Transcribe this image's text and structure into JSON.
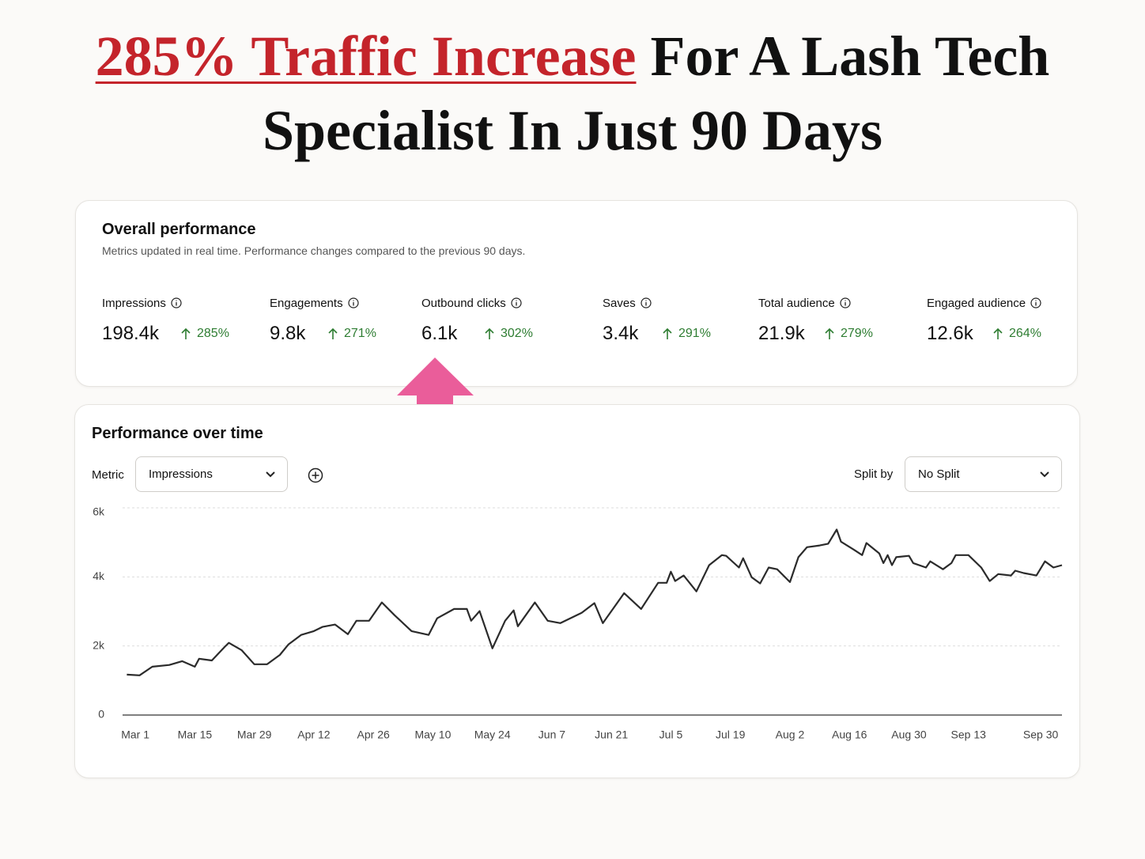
{
  "header": {
    "title_highlight": "285% Traffic Increase",
    "title_rest_line1": "For A Lash Tech",
    "title_line2": "Specialist In Just 90 Days"
  },
  "overall": {
    "title": "Overall performance",
    "subtitle": "Metrics updated in real time. Performance changes compared to the previous 90 days.",
    "metrics": [
      {
        "name": "Impressions",
        "value": "198.4k",
        "change": "285%"
      },
      {
        "name": "Engagements",
        "value": "9.8k",
        "change": "271%"
      },
      {
        "name": "Outbound clicks",
        "value": "6.1k",
        "change": "302%"
      },
      {
        "name": "Saves",
        "value": "3.4k",
        "change": "291%"
      },
      {
        "name": "Total audience",
        "value": "21.9k",
        "change": "279%"
      },
      {
        "name": "Engaged audience",
        "value": "12.6k",
        "change": "264%"
      }
    ]
  },
  "performance": {
    "title": "Performance over time",
    "metric_label": "Metric",
    "metric_selected": "Impressions",
    "split_label": "Split by",
    "split_selected": "No Split"
  },
  "chart_data": {
    "type": "line",
    "color": "#2b2b2b",
    "grid": true,
    "x": [
      -2,
      1,
      4,
      8,
      11,
      14,
      15,
      18,
      21,
      22,
      25,
      28,
      31,
      34,
      36,
      39,
      42,
      44,
      47,
      50,
      52,
      55,
      58,
      61,
      65,
      69,
      71,
      75,
      78,
      79,
      81,
      84,
      87,
      89,
      90,
      94,
      97,
      100,
      105,
      108,
      110,
      115,
      119,
      123,
      125,
      126,
      127,
      129,
      132,
      135,
      138,
      139,
      142,
      143,
      145,
      147,
      149,
      151,
      154,
      156,
      158,
      161,
      163,
      165,
      166,
      169,
      171,
      172,
      175,
      176,
      177,
      178,
      179,
      182,
      183,
      186,
      187,
      190,
      192,
      193,
      196,
      199,
      201,
      203,
      206,
      207,
      209,
      212,
      214,
      216,
      218
    ],
    "values": [
      1170,
      1150,
      1400,
      1450,
      1560,
      1400,
      1630,
      1580,
      1970,
      2090,
      1880,
      1470,
      1470,
      1740,
      2040,
      2320,
      2430,
      2550,
      2620,
      2340,
      2730,
      2730,
      3260,
      2890,
      2430,
      2320,
      2800,
      3070,
      3070,
      2730,
      3010,
      1930,
      2730,
      3030,
      2570,
      3260,
      2730,
      2660,
      2960,
      3240,
      2660,
      3530,
      3070,
      3830,
      3830,
      4150,
      3880,
      4040,
      3580,
      4340,
      4630,
      4610,
      4270,
      4540,
      3990,
      3810,
      4270,
      4220,
      3850,
      4570,
      4860,
      4910,
      4960,
      5370,
      5020,
      4790,
      4630,
      4980,
      4680,
      4400,
      4630,
      4340,
      4570,
      4610,
      4400,
      4270,
      4450,
      4220,
      4400,
      4630,
      4630,
      4270,
      3880,
      4080,
      4040,
      4180,
      4110,
      4040,
      4450,
      4270,
      4340
    ],
    "xlim": [
      -3,
      218
    ],
    "xticks": [
      {
        "value": 0,
        "label": "Mar 1"
      },
      {
        "value": 14,
        "label": "Mar 15"
      },
      {
        "value": 28,
        "label": "Mar 29"
      },
      {
        "value": 42,
        "label": "Apr 12"
      },
      {
        "value": 56,
        "label": "Apr 26"
      },
      {
        "value": 70,
        "label": "May 10"
      },
      {
        "value": 84,
        "label": "May 24"
      },
      {
        "value": 98,
        "label": "Jun 7"
      },
      {
        "value": 112,
        "label": "Jun 21"
      },
      {
        "value": 126,
        "label": "Jul 5"
      },
      {
        "value": 140,
        "label": "Jul 19"
      },
      {
        "value": 154,
        "label": "Aug 2"
      },
      {
        "value": 168,
        "label": "Aug 16"
      },
      {
        "value": 182,
        "label": "Aug 30"
      },
      {
        "value": 196,
        "label": "Sep 13"
      },
      {
        "value": 213,
        "label": "Sep 30"
      }
    ],
    "ylim": [
      0,
      6000
    ],
    "yticks": [
      0,
      {
        "value": 2000,
        "label": "2k"
      },
      {
        "value": 4000,
        "label": "4k"
      },
      {
        "value": 6000,
        "label": "6k"
      }
    ]
  }
}
